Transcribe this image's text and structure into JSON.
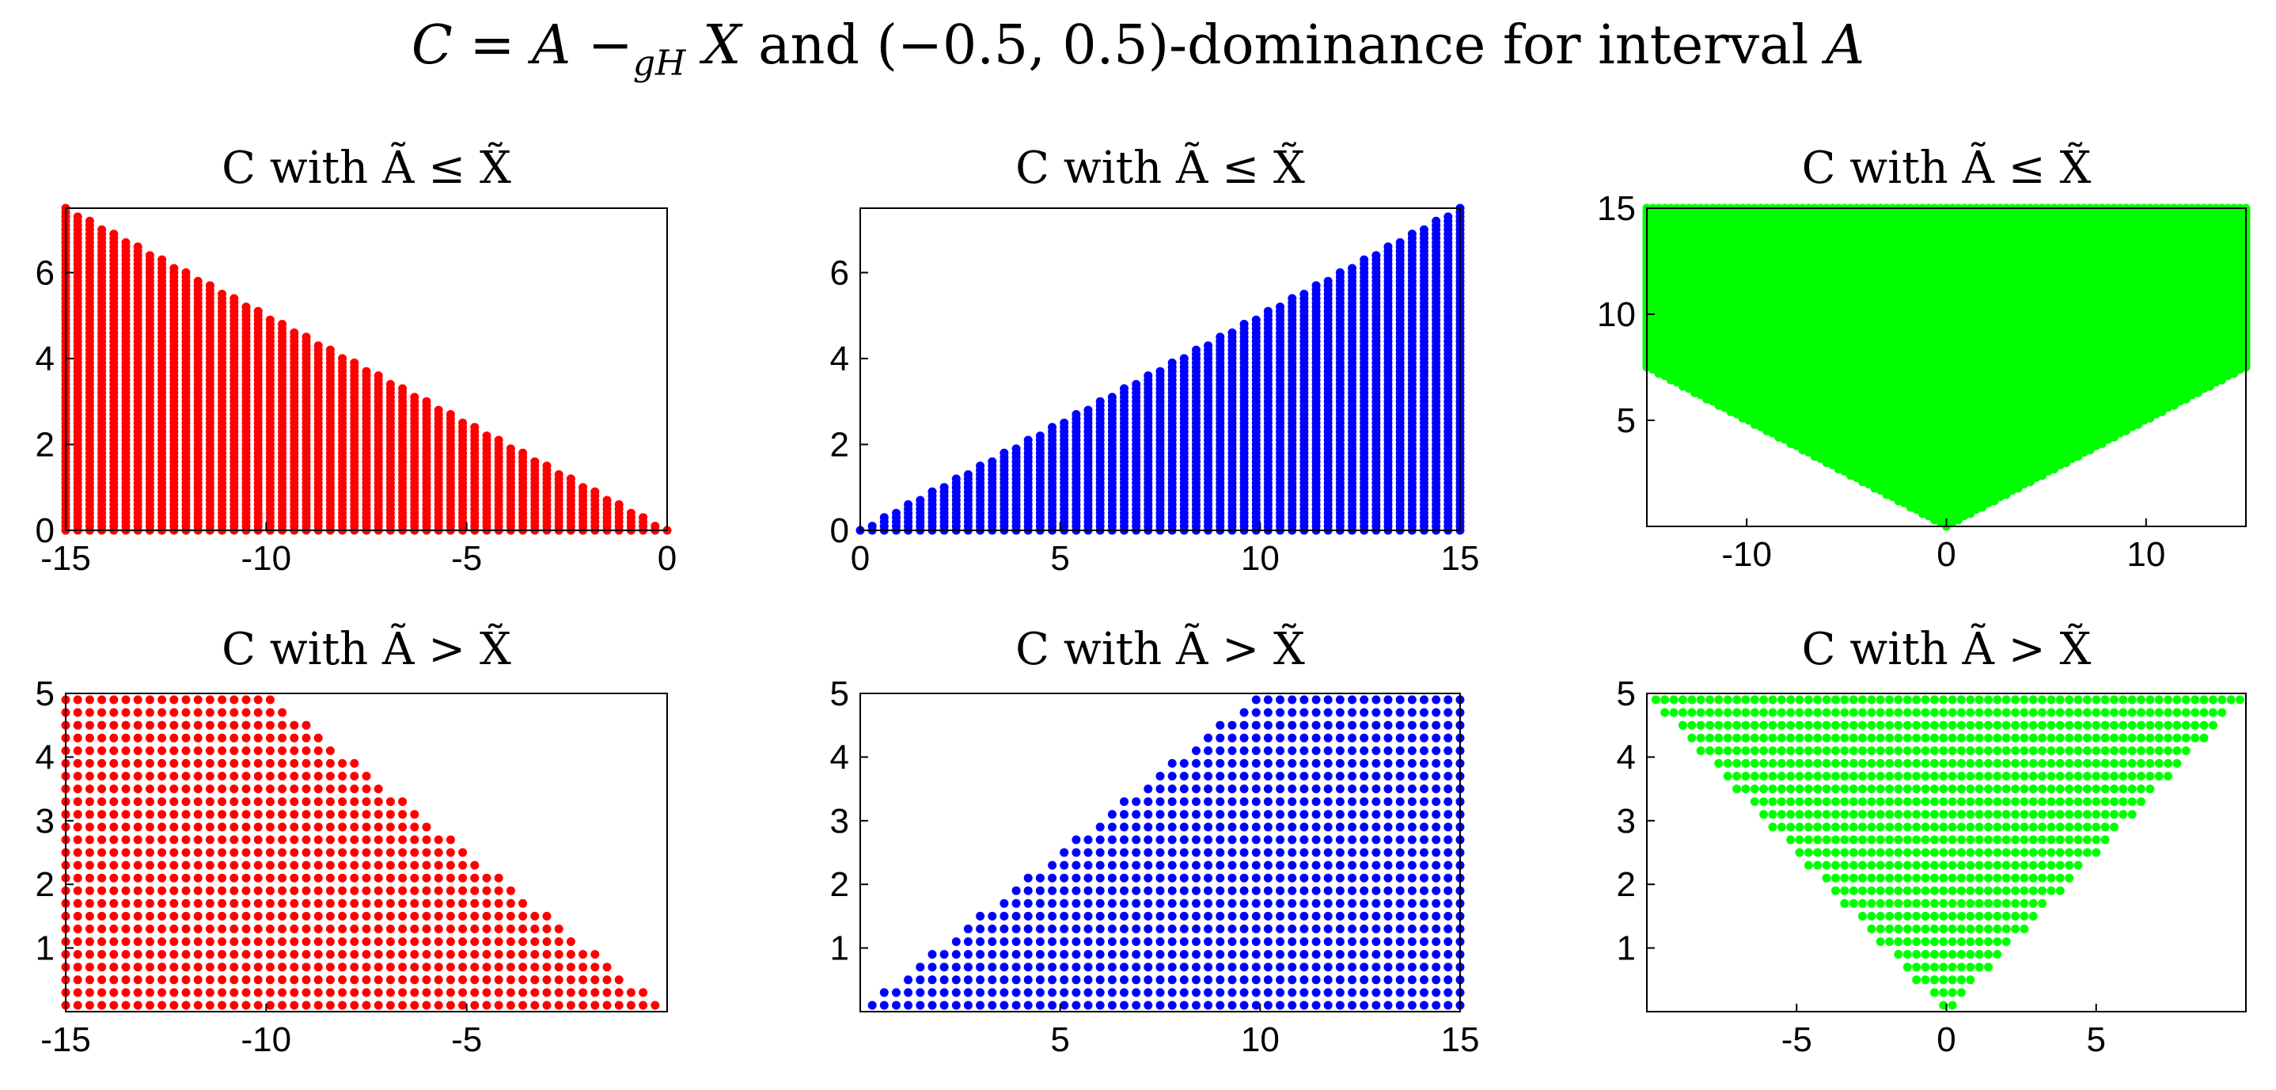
{
  "figure": {
    "title": {
      "lhs": "C",
      "eq": "=",
      "a": "A",
      "minus": "−",
      "sub": "gH",
      "x": "X",
      "rest": "and (−0.5, 0.5)-dominance for interval",
      "tail": "A"
    }
  },
  "chart_data": [
    {
      "type": "scatter",
      "title": "C with Ã ≤ X̃",
      "color": "#ff0000",
      "region": "below line from (-15, 7.5) to (0, 0)",
      "x_range": [
        -15,
        0
      ],
      "y_range": [
        0,
        7.5
      ],
      "xlim": [
        -15,
        0
      ],
      "ylim": [
        0,
        7.5
      ],
      "xticks": [
        -15,
        -10,
        -5,
        0
      ],
      "yticks": [
        0,
        2,
        4,
        6
      ],
      "x_step": 0.3,
      "y_step": 0.1,
      "grid": false
    },
    {
      "type": "scatter",
      "title": "C with Ã ≤ X̃",
      "color": "#0000ff",
      "region": "below line from (0, 0) to (15, 7.5)",
      "x_range": [
        0,
        15
      ],
      "y_range": [
        0,
        7.5
      ],
      "xlim": [
        0,
        15
      ],
      "ylim": [
        0,
        7.5
      ],
      "xticks": [
        0,
        5,
        10,
        15
      ],
      "yticks": [
        0,
        2,
        4,
        6
      ],
      "x_step": 0.3,
      "y_step": 0.1,
      "grid": false
    },
    {
      "type": "scatter",
      "title": "C with Ã ≤ X̃",
      "color": "#00ff00",
      "region": "above |x|/2 up to 15",
      "x_range": [
        -15,
        15
      ],
      "y_range": [
        0,
        15
      ],
      "xlim": [
        -15,
        15
      ],
      "ylim": [
        0,
        15
      ],
      "xticks": [
        -10,
        0,
        10
      ],
      "yticks": [
        5,
        10,
        15
      ],
      "x_step": 0.3,
      "y_step": 0.1,
      "grid": false
    },
    {
      "type": "scatter",
      "title": "C with Ã > X̃",
      "color": "#ff0000",
      "region": "x in [-15, 0], y in [0.1, 5], below line from (-10, 5) to (0, 0)",
      "x_range": [
        -15,
        0
      ],
      "y_range": [
        0.1,
        5
      ],
      "xlim": [
        -15,
        0
      ],
      "ylim": [
        0,
        5
      ],
      "xticks": [
        -15,
        -10,
        -5
      ],
      "yticks": [
        1,
        2,
        3,
        4,
        5
      ],
      "x_step": 0.3,
      "y_step": 0.2,
      "grid": false
    },
    {
      "type": "scatter",
      "title": "C with Ã > X̃",
      "color": "#0000ff",
      "region": "x in [0, 15], y in [0.1, 5], below line from (0, 0) to (10, 5)",
      "x_range": [
        0,
        15
      ],
      "y_range": [
        0.1,
        5
      ],
      "xlim": [
        0,
        15
      ],
      "ylim": [
        0,
        5
      ],
      "xticks": [
        5,
        10,
        15
      ],
      "yticks": [
        1,
        2,
        3,
        4,
        5
      ],
      "x_step": 0.3,
      "y_step": 0.2,
      "grid": false
    },
    {
      "type": "scatter",
      "title": "C with Ã > X̃",
      "color": "#00ff00",
      "region": "|x| < 2y, y in [0.1, 5]",
      "x_range": [
        -10,
        10
      ],
      "y_range": [
        0.1,
        5
      ],
      "xlim": [
        -10,
        10
      ],
      "ylim": [
        0,
        5
      ],
      "xticks": [
        -5,
        0,
        5
      ],
      "yticks": [
        1,
        2,
        3,
        4,
        5
      ],
      "x_step": 0.3,
      "y_step": 0.2,
      "grid": false
    }
  ]
}
